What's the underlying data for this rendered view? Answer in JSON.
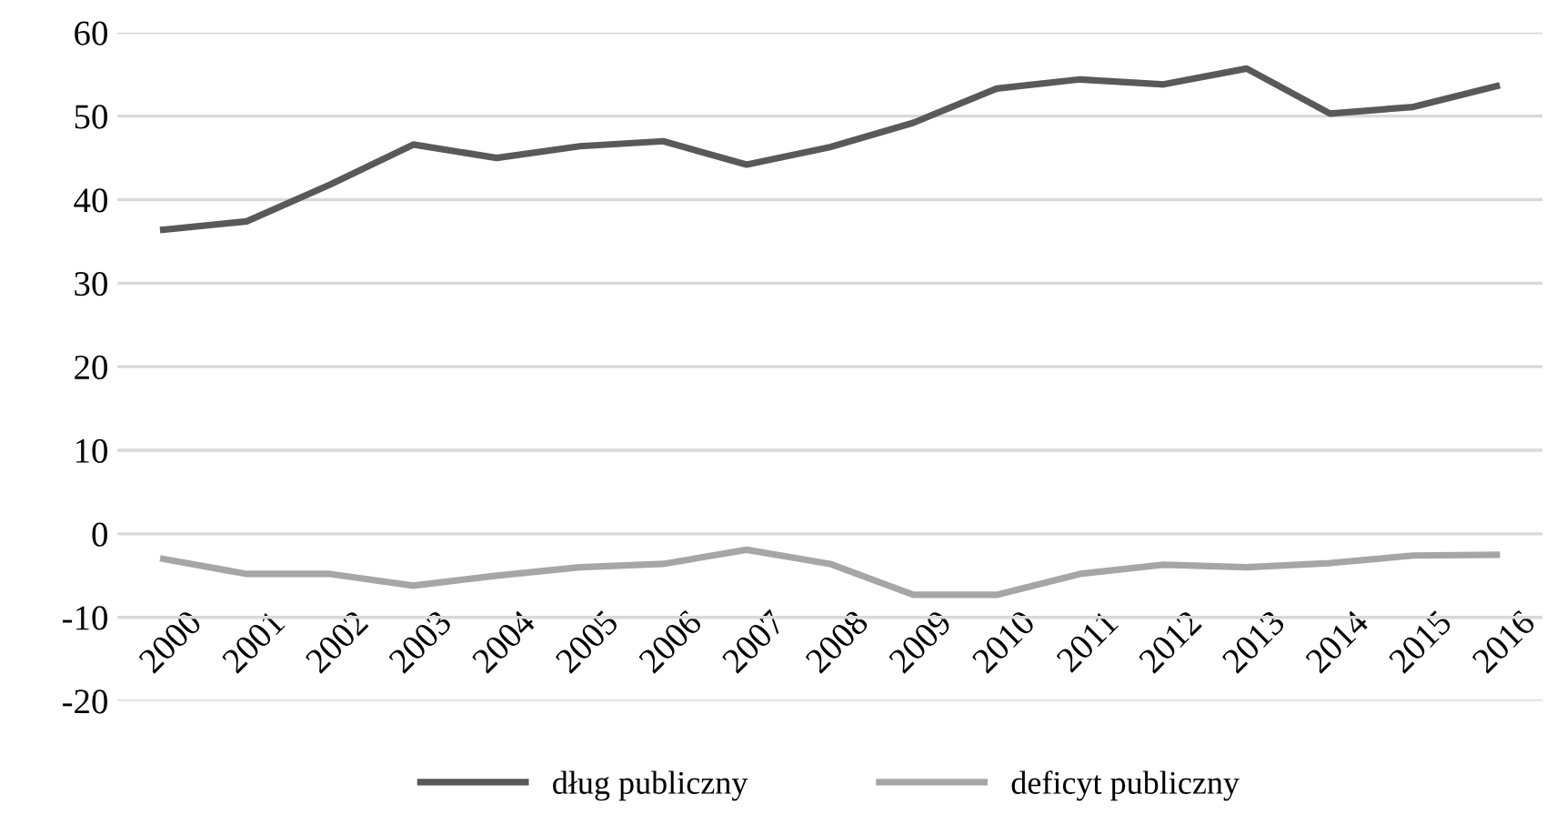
{
  "chart_data": {
    "type": "line",
    "categories": [
      "2000",
      "2001",
      "2002",
      "2003",
      "2004",
      "2005",
      "2006",
      "2007",
      "2008",
      "2009",
      "2010",
      "2011",
      "2012",
      "2013",
      "2014",
      "2015",
      "2016"
    ],
    "series": [
      {
        "name": "dług publiczny",
        "color": "#595959",
        "values": [
          36.4,
          37.4,
          41.8,
          46.6,
          45.0,
          46.4,
          47.0,
          44.2,
          46.3,
          49.2,
          53.3,
          54.4,
          53.8,
          55.7,
          50.3,
          51.1,
          53.6
        ]
      },
      {
        "name": "deficyt publiczny",
        "color": "#a6a6a6",
        "values": [
          -3.0,
          -4.8,
          -4.8,
          -6.2,
          -5.0,
          -4.0,
          -3.6,
          -1.9,
          -3.6,
          -7.3,
          -7.3,
          -4.8,
          -3.7,
          -4.0,
          -3.5,
          -2.6,
          -2.5
        ]
      }
    ],
    "ylim": [
      -20,
      60
    ],
    "yticks": [
      -20,
      -10,
      0,
      10,
      20,
      30,
      40,
      50,
      60
    ],
    "grid": "y",
    "legend": "bottom",
    "marker": "none",
    "line_style": "solid"
  }
}
